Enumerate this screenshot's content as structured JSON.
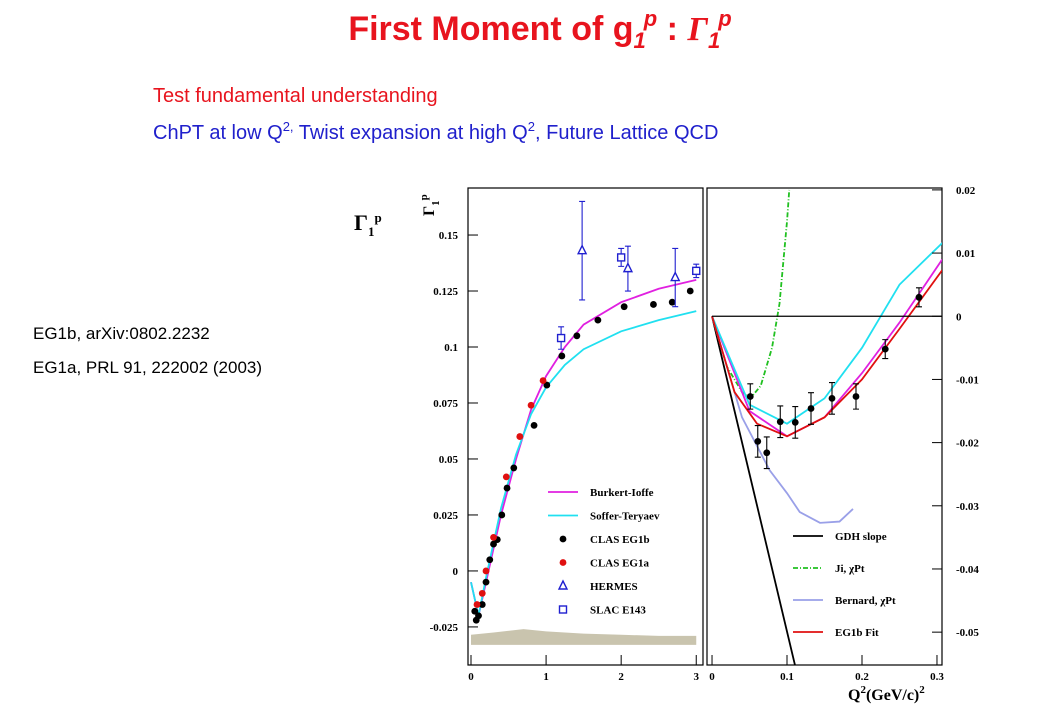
{
  "slide": {
    "title": [
      "First Moment of g",
      "1",
      "p",
      " : ",
      "Γ",
      "1",
      "p"
    ],
    "subtitle": "Test fundamental understanding",
    "line2": [
      "ChPT at low Q",
      "2,",
      " Twist expansion at high Q",
      "2",
      ", Future Lattice QCD"
    ],
    "references": [
      "EG1b,   arXiv:0802.2232",
      "EG1a, PRL 91, 222002 (2003)"
    ],
    "marker_label": [
      "Γ",
      "1",
      "p"
    ]
  },
  "chart_data": [
    {
      "type": "scatter",
      "ylabel": [
        "Γ",
        "1",
        "p"
      ],
      "xlim": [
        -0.04,
        3.09
      ],
      "ylim": [
        -0.042,
        0.171
      ],
      "xticks": [
        0,
        1,
        2,
        3
      ],
      "yticks": [
        -0.025,
        0,
        0.025,
        0.05,
        0.075,
        0.1,
        0.125,
        0.15
      ],
      "yaxis_side": "left",
      "legend": "lower right",
      "series": [
        {
          "kind": "band",
          "color": "#c9c4ae",
          "x": [
            0,
            0.3,
            0.7,
            1.0,
            1.5,
            2.0,
            2.5,
            3.0
          ],
          "values": [
            -0.0285,
            -0.0275,
            -0.026,
            -0.027,
            -0.028,
            -0.0285,
            -0.029,
            -0.029
          ],
          "lower": [
            -0.033,
            -0.033,
            -0.033,
            -0.033,
            -0.033,
            -0.033,
            -0.033,
            -0.033
          ]
        },
        {
          "name": "Burkert-Ioffe",
          "kind": "line",
          "color": "#e020e0",
          "x": [
            0,
            0.1,
            0.2,
            0.4,
            0.6,
            0.8,
            1.0,
            1.25,
            1.5,
            2.0,
            2.5,
            3.0
          ],
          "values": [
            -0.005,
            -0.02,
            -0.005,
            0.025,
            0.05,
            0.072,
            0.087,
            0.1,
            0.11,
            0.12,
            0.126,
            0.13
          ]
        },
        {
          "name": "Soffer-Teryaev",
          "kind": "line",
          "color": "#20e0f0",
          "x": [
            0,
            0.1,
            0.2,
            0.4,
            0.6,
            0.8,
            1.0,
            1.25,
            1.5,
            2.0,
            2.5,
            3.0
          ],
          "values": [
            -0.005,
            -0.02,
            -0.003,
            0.028,
            0.052,
            0.07,
            0.082,
            0.092,
            0.099,
            0.107,
            0.112,
            0.116
          ]
        },
        {
          "name": "CLAS EG1b",
          "kind": "points",
          "marker": "circle",
          "color": "#000000",
          "x": [
            0.05,
            0.07,
            0.1,
            0.15,
            0.2,
            0.25,
            0.3,
            0.35,
            0.41,
            0.48,
            0.57,
            0.84,
            1.01,
            1.21,
            1.41,
            1.69,
            2.04,
            2.43,
            2.68,
            2.92
          ],
          "values": [
            -0.018,
            -0.022,
            -0.02,
            -0.015,
            -0.005,
            0.005,
            0.012,
            0.014,
            0.025,
            0.037,
            0.046,
            0.065,
            0.083,
            0.096,
            0.105,
            0.112,
            0.118,
            0.119,
            0.12,
            0.125
          ]
        },
        {
          "name": "CLAS EG1a",
          "kind": "points",
          "marker": "circle",
          "color": "#e01010",
          "x": [
            0.08,
            0.15,
            0.2,
            0.3,
            0.47,
            0.65,
            0.8,
            0.96
          ],
          "values": [
            -0.015,
            -0.01,
            0.0,
            0.015,
            0.042,
            0.06,
            0.074,
            0.085
          ]
        },
        {
          "name": "HERMES",
          "kind": "points",
          "marker": "triangle",
          "color": "#2020d0",
          "x": [
            1.48,
            2.09,
            2.72
          ],
          "values": [
            0.143,
            0.135,
            0.131
          ],
          "errors": [
            0.022,
            0.01,
            0.013
          ]
        },
        {
          "name": "SLAC E143",
          "kind": "points",
          "marker": "square",
          "color": "#2020d0",
          "x": [
            1.2,
            2.0,
            3.0
          ],
          "values": [
            0.104,
            0.14,
            0.134
          ],
          "errors": [
            0.005,
            0.004,
            0.003
          ]
        }
      ]
    },
    {
      "type": "scatter",
      "xlabel": [
        "Q",
        "2",
        "(GeV/c)",
        "2"
      ],
      "xlim": [
        -0.0067,
        0.3067
      ],
      "ylim": [
        -0.0552,
        0.0203
      ],
      "xticks": [
        0,
        0.1,
        0.2,
        0.3
      ],
      "yticks": [
        -0.05,
        -0.04,
        -0.03,
        -0.02,
        -0.01,
        0,
        0.01,
        0.02
      ],
      "hline": 0,
      "yaxis_side": "right",
      "legend": "lower right",
      "series": [
        {
          "name": "GDH slope",
          "kind": "line",
          "color": "#000000",
          "x": [
            0,
            0.111
          ],
          "values": [
            0,
            -0.0554
          ]
        },
        {
          "name": "Ji, χPt",
          "kind": "line",
          "dash": true,
          "color": "#20c020",
          "x": [
            0,
            0.02,
            0.04,
            0.051,
            0.065,
            0.08,
            0.09,
            0.1,
            0.103
          ],
          "values": [
            0,
            -0.008,
            -0.012,
            -0.013,
            -0.011,
            -0.005,
            0.002,
            0.015,
            0.02
          ]
        },
        {
          "name": "Bernard, χPt",
          "kind": "line",
          "color": "#9aa0e8",
          "x": [
            0,
            0.04,
            0.077,
            0.1,
            0.117,
            0.144,
            0.17,
            0.188
          ],
          "values": [
            0,
            -0.016,
            -0.0244,
            -0.028,
            -0.031,
            -0.0327,
            -0.0325,
            -0.0305
          ]
        },
        {
          "kind": "line",
          "color": "#e020e0",
          "x": [
            0,
            0.05,
            0.1,
            0.15,
            0.2,
            0.25,
            0.307
          ],
          "values": [
            0,
            -0.015,
            -0.019,
            -0.016,
            -0.009,
            -0.001,
            0.009
          ]
        },
        {
          "kind": "line",
          "color": "#20e0f0",
          "x": [
            0,
            0.05,
            0.1,
            0.15,
            0.2,
            0.25,
            0.307
          ],
          "values": [
            0,
            -0.014,
            -0.017,
            -0.013,
            -0.005,
            0.005,
            0.0116
          ]
        },
        {
          "name": "EG1b Fit",
          "kind": "line",
          "color": "#e01010",
          "x": [
            0,
            0.03,
            0.06,
            0.1,
            0.15,
            0.2,
            0.25,
            0.307
          ],
          "values": [
            0,
            -0.012,
            -0.017,
            -0.019,
            -0.016,
            -0.01,
            -0.002,
            0.0073
          ]
        },
        {
          "kind": "points",
          "marker": "circle",
          "color": "#000000",
          "x": [
            0.051,
            0.061,
            0.073,
            0.091,
            0.111,
            0.132,
            0.16,
            0.192,
            0.231,
            0.276
          ],
          "values": [
            -0.0127,
            -0.0198,
            -0.0216,
            -0.0167,
            -0.0168,
            -0.0146,
            -0.013,
            -0.0127,
            -0.0052,
            0.003
          ],
          "errors": [
            0.002,
            0.0025,
            0.0025,
            0.0025,
            0.0025,
            0.0025,
            0.0025,
            0.002,
            0.0015,
            0.0015
          ]
        }
      ]
    }
  ]
}
